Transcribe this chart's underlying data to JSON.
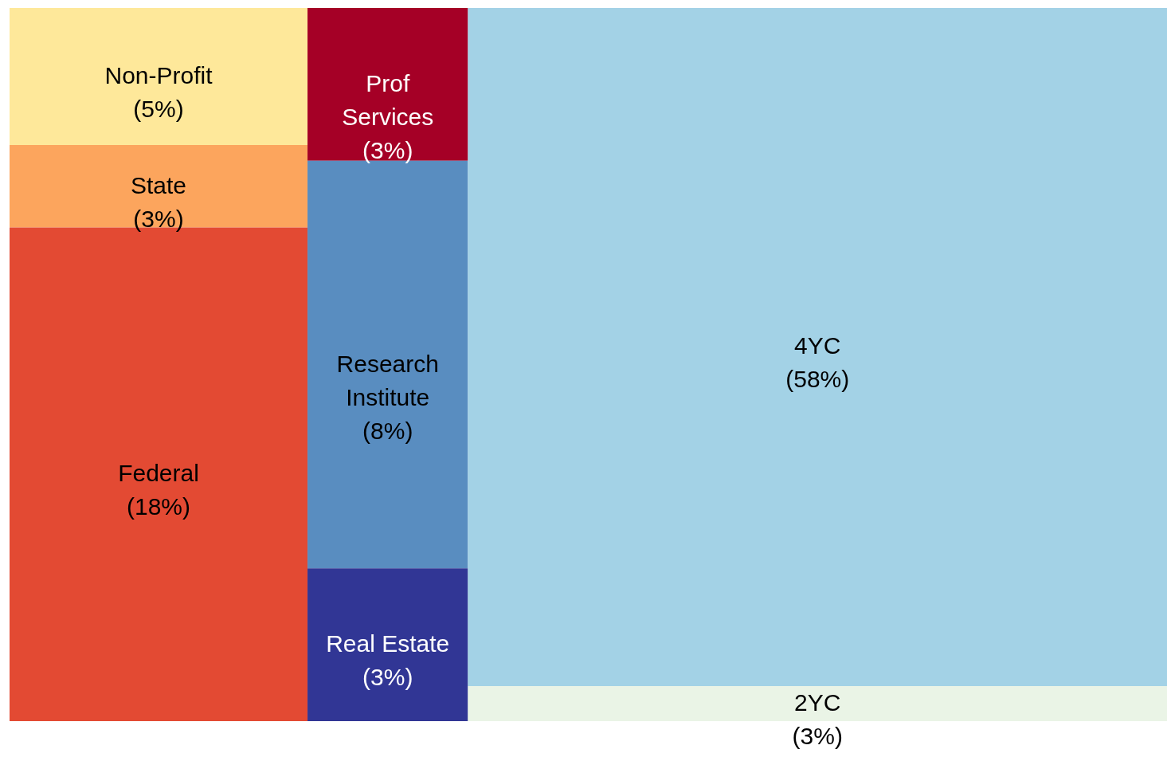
{
  "chart_data": {
    "type": "other",
    "categories": [
      "Non-Profit",
      "State",
      "Federal",
      "Prof Services",
      "Research Institute",
      "Real Estate",
      "4YC",
      "2YC"
    ],
    "values": [
      5,
      3,
      18,
      3,
      8,
      3,
      58,
      3
    ],
    "value_labels": [
      "(5%)",
      "(3%)",
      "(18%)",
      "(3%)",
      "(8%)",
      "(3%)",
      "(58%)",
      "(3%)"
    ],
    "colors": [
      "#fee89a",
      "#fca55d",
      "#e34a33",
      "#a50026",
      "#598dc0",
      "#313695",
      "#a3d2e6",
      "#eaf4e6"
    ]
  }
}
